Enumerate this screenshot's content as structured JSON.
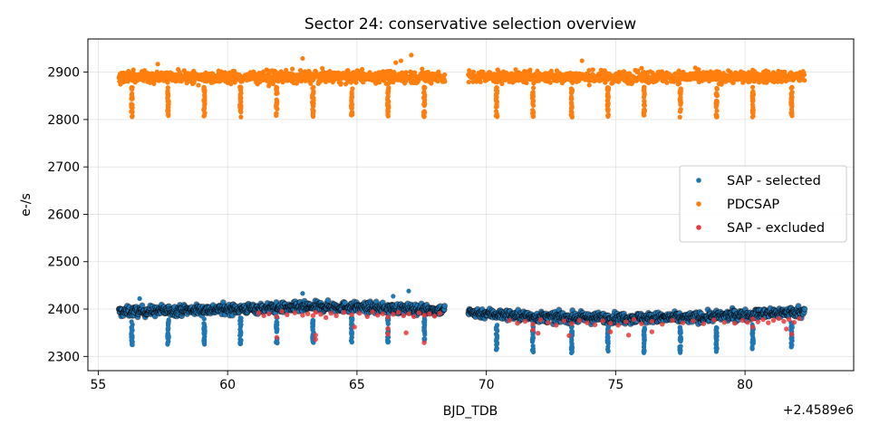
{
  "chart_data": {
    "type": "scatter",
    "title": "Sector 24: conservative selection overview",
    "xlabel": "BJD_TDB",
    "ylabel": "e-/s",
    "x_offset_label": "+2.4589e6",
    "xlim": [
      54.6,
      84.2
    ],
    "ylim": [
      2270,
      2970
    ],
    "xticks": [
      55,
      60,
      65,
      70,
      75,
      80
    ],
    "yticks": [
      2300,
      2400,
      2500,
      2600,
      2700,
      2800,
      2900
    ],
    "grid": true,
    "legend_position": "center-right",
    "data_range_x": [
      55.8,
      82.3
    ],
    "data_gap_x": [
      68.4,
      69.3
    ],
    "transit_times": [
      56.3,
      57.7,
      59.1,
      60.5,
      61.9,
      63.3,
      64.8,
      66.2,
      67.6,
      70.4,
      71.8,
      73.3,
      74.7,
      76.1,
      77.5,
      78.9,
      80.3,
      81.8
    ],
    "series": [
      {
        "name": "SAP - selected",
        "color": "#1f77b4",
        "edge_color": "#000000",
        "baseline": [
          [
            55.8,
            2394
          ],
          [
            60.0,
            2400
          ],
          [
            64.0,
            2405
          ],
          [
            68.3,
            2398
          ],
          [
            69.4,
            2393
          ],
          [
            72.0,
            2383
          ],
          [
            75.0,
            2381
          ],
          [
            78.0,
            2382
          ],
          [
            82.3,
            2395
          ]
        ],
        "scatter_half_width": 12,
        "transit_depth": 75,
        "outliers": [
          [
            67.0,
            2438
          ],
          [
            62.9,
            2433
          ],
          [
            66.4,
            2427
          ],
          [
            56.6,
            2422
          ]
        ]
      },
      {
        "name": "PDCSAP",
        "color": "#ff7f0e",
        "baseline": [
          [
            55.8,
            2890
          ],
          [
            68.3,
            2890
          ],
          [
            69.4,
            2890
          ],
          [
            82.3,
            2890
          ]
        ],
        "scatter_half_width": 14,
        "transit_depth": 85,
        "outliers": [
          [
            67.1,
            2936
          ],
          [
            62.9,
            2929
          ],
          [
            66.7,
            2924
          ],
          [
            73.7,
            2924
          ],
          [
            66.5,
            2920
          ],
          [
            57.3,
            2917
          ]
        ]
      },
      {
        "name": "SAP - excluded",
        "color": "#e8383b",
        "points": [
          [
            61.2,
            2392
          ],
          [
            61.4,
            2386
          ],
          [
            61.6,
            2390
          ],
          [
            61.9,
            2384
          ],
          [
            62.1,
            2395
          ],
          [
            62.3,
            2388
          ],
          [
            62.6,
            2392
          ],
          [
            62.9,
            2387
          ],
          [
            63.1,
            2390
          ],
          [
            63.3,
            2386
          ],
          [
            63.4,
            2393
          ],
          [
            63.6,
            2389
          ],
          [
            63.8,
            2382
          ],
          [
            64.0,
            2391
          ],
          [
            64.2,
            2386
          ],
          [
            64.5,
            2393
          ],
          [
            64.8,
            2388
          ],
          [
            65.1,
            2391
          ],
          [
            65.4,
            2384
          ],
          [
            65.6,
            2394
          ],
          [
            65.8,
            2387
          ],
          [
            66.0,
            2390
          ],
          [
            66.2,
            2383
          ],
          [
            66.4,
            2389
          ],
          [
            66.6,
            2393
          ],
          [
            66.8,
            2386
          ],
          [
            67.0,
            2390
          ],
          [
            67.2,
            2384
          ],
          [
            67.4,
            2392
          ],
          [
            67.6,
            2387
          ],
          [
            67.8,
            2390
          ],
          [
            68.0,
            2385
          ],
          [
            68.2,
            2391
          ],
          [
            61.9,
            2340
          ],
          [
            63.4,
            2345
          ],
          [
            63.4,
            2336
          ],
          [
            64.9,
            2362
          ],
          [
            66.2,
            2359
          ],
          [
            66.2,
            2347
          ],
          [
            67.6,
            2329
          ],
          [
            66.9,
            2350
          ],
          [
            70.9,
            2376
          ],
          [
            71.2,
            2370
          ],
          [
            71.5,
            2374
          ],
          [
            71.8,
            2368
          ],
          [
            72.1,
            2377
          ],
          [
            72.4,
            2371
          ],
          [
            72.7,
            2366
          ],
          [
            73.0,
            2375
          ],
          [
            73.3,
            2369
          ],
          [
            73.6,
            2376
          ],
          [
            73.9,
            2371
          ],
          [
            74.2,
            2367
          ],
          [
            74.5,
            2375
          ],
          [
            74.8,
            2370
          ],
          [
            75.1,
            2366
          ],
          [
            75.4,
            2373
          ],
          [
            75.7,
            2378
          ],
          [
            76.0,
            2369
          ],
          [
            76.4,
            2374
          ],
          [
            76.8,
            2368
          ],
          [
            77.2,
            2376
          ],
          [
            77.6,
            2371
          ],
          [
            78.0,
            2375
          ],
          [
            78.4,
            2369
          ],
          [
            78.8,
            2377
          ],
          [
            79.2,
            2372
          ],
          [
            79.6,
            2370
          ],
          [
            79.9,
            2376
          ],
          [
            80.1,
            2372
          ],
          [
            80.3,
            2379
          ],
          [
            80.5,
            2373
          ],
          [
            80.7,
            2378
          ],
          [
            80.9,
            2371
          ],
          [
            81.1,
            2376
          ],
          [
            81.3,
            2380
          ],
          [
            81.5,
            2374
          ],
          [
            81.7,
            2378
          ],
          [
            81.9,
            2372
          ],
          [
            82.1,
            2380
          ],
          [
            71.8,
            2356
          ],
          [
            72.0,
            2349
          ],
          [
            73.2,
            2344
          ],
          [
            74.8,
            2352
          ],
          [
            75.5,
            2345
          ],
          [
            76.4,
            2352
          ],
          [
            80.3,
            2362
          ],
          [
            81.6,
            2358
          ],
          [
            81.8,
            2347
          ]
        ]
      }
    ]
  }
}
